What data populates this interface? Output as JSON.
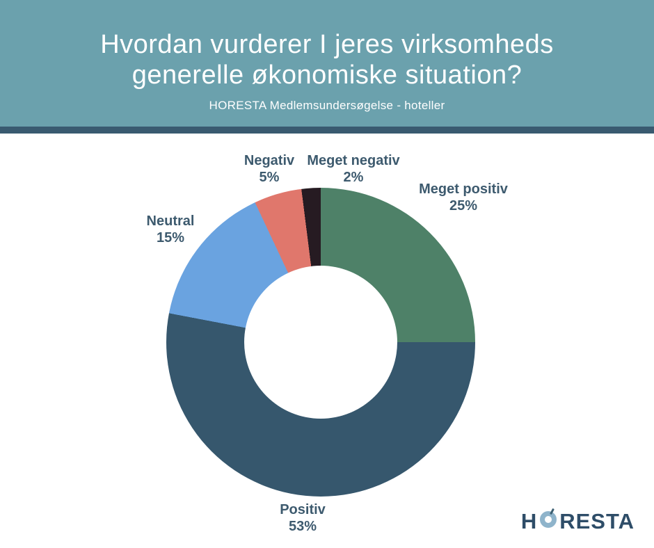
{
  "header": {
    "title_line1": "Hvordan vurderer I jeres virksomheds",
    "title_line2": "generelle økonomiske situation?",
    "subtitle": "HORESTA Medlemsundersøgelse  - hoteller",
    "background_color": "#6ba1ad",
    "stripe_color": "#395a70",
    "text_color": "#ffffff"
  },
  "chart_data": {
    "type": "pie",
    "variant": "donut",
    "title": "Hvordan vurderer I jeres virksomheds generelle økonomiske situation?",
    "subtitle": "HORESTA Medlemsundersøgelse  - hoteller",
    "start_angle_deg": 0,
    "direction": "clockwise",
    "inner_radius_ratio": 0.5,
    "label_color": "#3d5a6e",
    "slices": [
      {
        "label": "Meget positiv",
        "value": 25,
        "pct_label": "25%",
        "color": "#4e8168"
      },
      {
        "label": "Positiv",
        "value": 53,
        "pct_label": "53%",
        "color": "#36576d"
      },
      {
        "label": "Neutral",
        "value": 15,
        "pct_label": "15%",
        "color": "#6aa3e0"
      },
      {
        "label": "Negativ",
        "value": 5,
        "pct_label": "5%",
        "color": "#e0776c"
      },
      {
        "label": "Meget negativ",
        "value": 2,
        "pct_label": "2%",
        "color": "#261b22"
      }
    ]
  },
  "logo": {
    "text": "HORESTA",
    "prefix": "H",
    "suffix": "RESTA",
    "text_color": "#2e4d68",
    "ring_color": "#8fb4cb",
    "accent_color": "#3c5f71"
  }
}
